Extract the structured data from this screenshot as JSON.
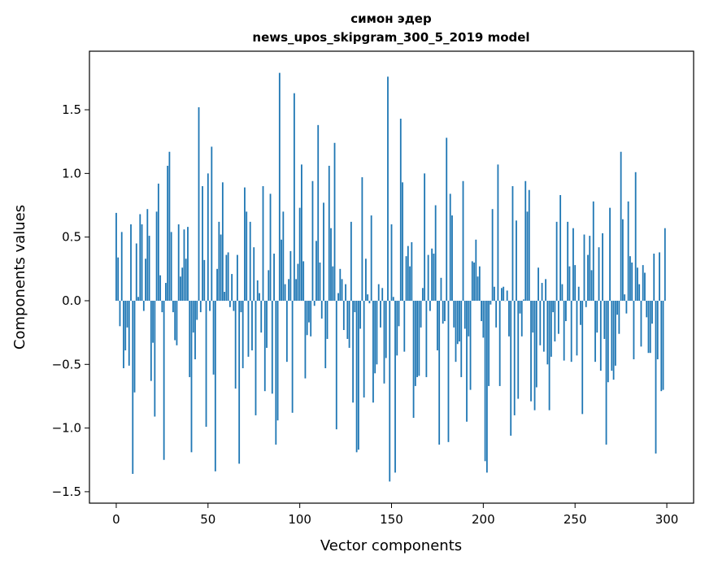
{
  "chart_data": {
    "type": "bar",
    "title": "симон эдер",
    "subtitle": "news_upos_skipgram_300_5_2019 model",
    "xlabel": "Vector components",
    "ylabel": "Components values",
    "xlim": [
      -14.6,
      314.6
    ],
    "ylim": [
      -1.59,
      1.96
    ],
    "xticks": [
      0,
      50,
      100,
      150,
      200,
      250,
      300
    ],
    "xtick_labels": [
      "0",
      "50",
      "100",
      "150",
      "200",
      "250",
      "300"
    ],
    "yticks": [
      -1.5,
      -1.0,
      -0.5,
      0.0,
      0.5,
      1.0,
      1.5
    ],
    "ytick_labels": [
      "−1.5",
      "−1.0",
      "−0.5",
      "0.0",
      "0.5",
      "1.0",
      "1.5"
    ],
    "grid": false,
    "bar_color": "#1f77b4",
    "values": [
      0.69,
      0.34,
      -0.2,
      0.54,
      -0.53,
      -0.39,
      -0.21,
      -0.51,
      0.6,
      -1.36,
      -0.72,
      0.45,
      0.03,
      0.68,
      0.6,
      -0.08,
      0.33,
      0.72,
      0.51,
      -0.63,
      -0.33,
      -0.91,
      0.7,
      0.92,
      0.2,
      -0.09,
      -1.25,
      0.14,
      1.06,
      1.17,
      0.54,
      -0.09,
      -0.31,
      -0.35,
      0.6,
      0.19,
      0.26,
      0.56,
      0.33,
      0.58,
      -0.6,
      -1.19,
      -0.25,
      -0.46,
      -0.15,
      1.52,
      -0.09,
      0.9,
      0.32,
      -0.99,
      1.0,
      -0.08,
      1.21,
      -0.58,
      -1.34,
      0.25,
      0.62,
      0.52,
      0.93,
      0.07,
      0.36,
      0.38,
      -0.05,
      0.21,
      -0.08,
      -0.69,
      0.36,
      -1.28,
      -0.09,
      -0.53,
      0.89,
      0.7,
      -0.44,
      0.62,
      -0.39,
      0.42,
      -0.9,
      0.16,
      0.06,
      -0.25,
      0.9,
      -0.71,
      -0.37,
      0.24,
      0.84,
      -0.73,
      0.37,
      -1.13,
      -0.94,
      1.79,
      0.48,
      0.7,
      0.13,
      -0.48,
      0.17,
      0.39,
      -0.88,
      1.63,
      0.17,
      0.29,
      0.73,
      1.07,
      0.31,
      -0.61,
      -0.27,
      -0.17,
      -0.28,
      0.94,
      -0.04,
      0.47,
      1.38,
      0.3,
      -0.14,
      0.77,
      -0.53,
      -0.3,
      1.06,
      0.57,
      0.27,
      1.24,
      -1.01,
      0.06,
      0.25,
      0.17,
      -0.23,
      0.13,
      -0.3,
      -0.37,
      0.62,
      -0.8,
      -0.09,
      -1.19,
      -1.17,
      -0.22,
      0.97,
      -0.76,
      0.33,
      0.05,
      -0.02,
      0.67,
      -0.8,
      -0.57,
      -0.5,
      0.13,
      -0.21,
      0.1,
      -0.65,
      -0.45,
      1.76,
      -1.42,
      0.6,
      0.03,
      -1.35,
      -0.43,
      -0.2,
      1.43,
      0.93,
      -0.4,
      0.35,
      0.43,
      0.27,
      0.46,
      -0.92,
      -0.67,
      -0.6,
      -0.59,
      -0.21,
      0.1,
      1.0,
      -0.6,
      0.36,
      -0.08,
      0.41,
      0.37,
      0.75,
      -0.39,
      -1.13,
      0.18,
      -0.18,
      -0.16,
      1.28,
      -1.11,
      0.84,
      0.67,
      -0.21,
      -0.48,
      -0.34,
      -0.32,
      -0.6,
      0.94,
      -0.22,
      -0.95,
      -0.28,
      -0.7,
      0.31,
      0.3,
      0.48,
      0.19,
      0.27,
      -0.16,
      -0.29,
      -1.26,
      -1.35,
      -0.67,
      -0.03,
      0.72,
      0.11,
      -0.21,
      1.07,
      -0.67,
      0.1,
      0.11,
      0.0,
      0.08,
      -0.28,
      -1.06,
      0.9,
      -0.9,
      0.63,
      -0.77,
      -0.1,
      -0.28,
      0.01,
      0.94,
      0.7,
      0.87,
      -0.79,
      -0.25,
      -0.86,
      -0.68,
      0.26,
      -0.35,
      0.14,
      -0.4,
      0.17,
      -0.5,
      -0.86,
      -0.44,
      -0.09,
      -0.32,
      0.62,
      -0.26,
      0.83,
      0.13,
      -0.47,
      -0.16,
      0.62,
      0.27,
      -0.48,
      0.57,
      0.28,
      -0.43,
      0.11,
      -0.19,
      -0.89,
      0.52,
      -0.05,
      0.36,
      0.51,
      0.24,
      0.78,
      -0.48,
      -0.25,
      0.42,
      -0.55,
      0.53,
      -0.3,
      -1.13,
      -0.64,
      0.73,
      -0.55,
      -0.62,
      -0.51,
      -0.11,
      -0.26,
      1.17,
      0.64,
      0.05,
      -0.1,
      0.78,
      0.35,
      0.3,
      -0.46,
      1.01,
      0.26,
      0.13,
      -0.36,
      0.28,
      0.22,
      -0.13,
      -0.41,
      -0.41,
      -0.18,
      0.37,
      -1.2,
      -0.46,
      0.38,
      -0.71,
      -0.7,
      0.57
    ]
  }
}
